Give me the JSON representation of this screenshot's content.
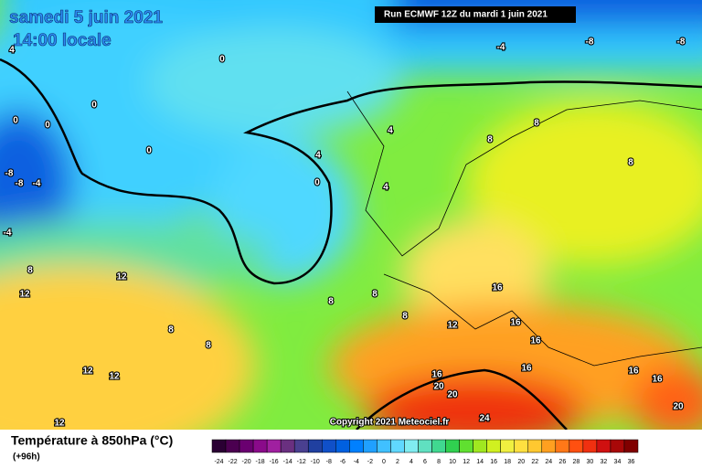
{
  "header": {
    "valid_date": "samedi 5 juin 2021",
    "valid_time": "14:00 locale",
    "run": "Run ECMWF 12Z du mardi 1 juin 2021"
  },
  "footer": {
    "copyright": "Copyright 2021 Meteociel.fr"
  },
  "legend": {
    "title": "Température à 850hPa (°C)",
    "step": "(+96h)",
    "values": [
      -24,
      -22,
      -20,
      -18,
      -16,
      -14,
      -12,
      -10,
      -8,
      -6,
      -4,
      -2,
      0,
      2,
      4,
      6,
      8,
      10,
      12,
      14,
      16,
      18,
      20,
      22,
      24,
      26,
      28,
      30,
      32,
      34,
      36
    ],
    "colors": [
      "#2a0033",
      "#4b0050",
      "#6a0070",
      "#8a0a8a",
      "#a020a0",
      "#6a3080",
      "#4a4090",
      "#2040a0",
      "#1050c8",
      "#0060e0",
      "#0080ff",
      "#20a0ff",
      "#40c0ff",
      "#60d8ff",
      "#80ecf0",
      "#60e0c0",
      "#40d890",
      "#30d050",
      "#60e030",
      "#a0e820",
      "#d0f020",
      "#f0f040",
      "#ffe040",
      "#ffc830",
      "#ffa020",
      "#ff7818",
      "#ff5010",
      "#f03010",
      "#d01010",
      "#a80808",
      "#800000"
    ]
  },
  "contour_labels": [
    -4,
    -8,
    -8,
    4,
    0,
    0,
    0,
    0,
    0,
    -8,
    -8,
    -4,
    -4,
    0,
    4,
    4,
    4,
    8,
    8,
    8,
    8,
    12,
    12,
    8,
    8,
    8,
    8,
    8,
    12,
    16,
    16,
    16,
    16,
    16,
    16,
    16,
    12,
    12,
    20,
    20,
    20,
    24,
    12
  ]
}
